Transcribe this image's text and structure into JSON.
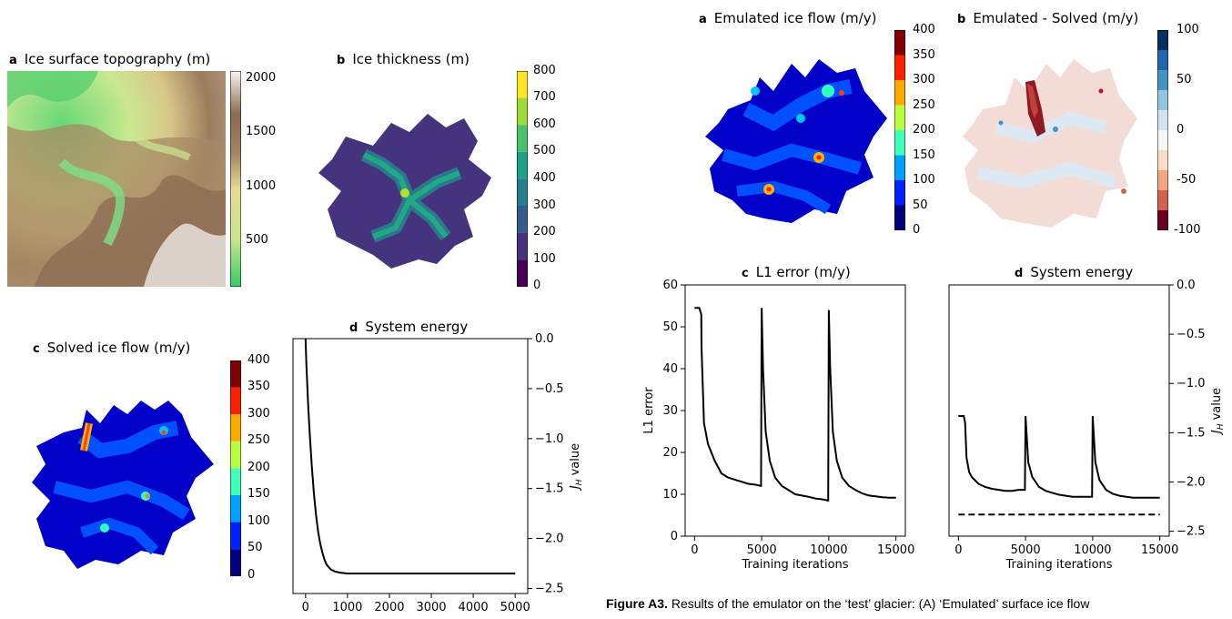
{
  "left_figure": {
    "a": {
      "letter": "a",
      "title": "Ice surface topography (m)",
      "colorbar_ticks": [
        "2000",
        "1500",
        "1000",
        "500"
      ]
    },
    "b": {
      "letter": "b",
      "title": "Ice thickness (m)",
      "colorbar_ticks": [
        "800",
        "700",
        "600",
        "500",
        "400",
        "300",
        "200",
        "100",
        "0"
      ]
    },
    "c": {
      "letter": "c",
      "title": "Solved ice flow  (m/y)",
      "colorbar_ticks": [
        "400",
        "350",
        "300",
        "250",
        "200",
        "150",
        "100",
        "50",
        "0"
      ]
    },
    "d": {
      "letter": "d",
      "title": "System energy"
    }
  },
  "right_figure": {
    "a": {
      "letter": "a",
      "title": "Emulated ice flow (m/y)",
      "colorbar_ticks": [
        "400",
        "350",
        "300",
        "250",
        "200",
        "150",
        "100",
        "50",
        "0"
      ]
    },
    "b": {
      "letter": "b",
      "title": "Emulated - Solved (m/y)",
      "colorbar_ticks": [
        "100",
        "50",
        "0",
        "-50",
        "-100"
      ]
    },
    "c": {
      "letter": "c",
      "title": "L1 error (m/y)"
    },
    "d": {
      "letter": "d",
      "title": "System energy"
    }
  },
  "caption": {
    "label": "Figure A3.",
    "text": " Results of the emulator on the ‘test’ glacier: (A) ‘Emulated’ surface ice flow"
  },
  "colors": {
    "jet_dark": "#00007f",
    "jet_red": "#7f0000",
    "viridis_dark": "#440154",
    "viridis_yellow": "#fde725",
    "terrain_green": "#33cc66",
    "rdbu_red": "#67001f",
    "rdbu_blue": "#053061"
  },
  "chart_data": [
    {
      "id": "left-d",
      "type": "line",
      "title": "System energy",
      "xlabel": "",
      "ylabel": "J_H value",
      "xlim": [
        -300,
        5300
      ],
      "ylim": [
        -2.55,
        0.0
      ],
      "xticks": [
        0,
        1000,
        2000,
        3000,
        4000,
        5000
      ],
      "yticks": [
        0.0,
        -0.5,
        -1.0,
        -1.5,
        -2.0,
        -2.5
      ],
      "series": [
        {
          "x": [
            0,
            20,
            60,
            100,
            150,
            200,
            250,
            300,
            350,
            400,
            450,
            500,
            600,
            700,
            800,
            900,
            1000,
            1500,
            2000,
            3000,
            4000,
            5000
          ],
          "y": [
            0.0,
            -0.25,
            -0.65,
            -0.95,
            -1.28,
            -1.55,
            -1.76,
            -1.93,
            -2.05,
            -2.14,
            -2.21,
            -2.26,
            -2.31,
            -2.33,
            -2.34,
            -2.345,
            -2.35,
            -2.35,
            -2.35,
            -2.35,
            -2.35,
            -2.35
          ]
        }
      ]
    },
    {
      "id": "right-c",
      "type": "line",
      "title": "L1 error (m/y)",
      "xlabel": "Training iterations",
      "ylabel": "L1 error",
      "xlim": [
        -700,
        15700
      ],
      "ylim": [
        0,
        60
      ],
      "xticks": [
        0,
        5000,
        10000,
        15000
      ],
      "yticks": [
        0,
        10,
        20,
        30,
        40,
        50,
        60
      ],
      "series": [
        {
          "x": [
            0,
            350,
            500,
            520,
            700,
            1000,
            1500,
            2000,
            2500,
            3000,
            3500,
            4000,
            4500,
            4950,
            5000,
            5100,
            5300,
            5600,
            6000,
            6500,
            7000,
            7500,
            8000,
            8500,
            9000,
            9500,
            9950,
            10000,
            10100,
            10300,
            10600,
            11000,
            11500,
            12000,
            12500,
            13000,
            13500,
            14000,
            14500,
            15000
          ],
          "y": [
            54.5,
            54.5,
            53,
            45,
            27,
            22,
            18,
            15,
            14,
            13.5,
            13,
            12.5,
            12.3,
            12,
            54.5,
            40,
            25,
            18,
            14,
            12,
            11,
            10,
            9.7,
            9.4,
            9,
            8.8,
            8.5,
            54,
            40,
            25,
            18,
            14,
            12,
            11,
            10.2,
            9.7,
            9.5,
            9.3,
            9.2,
            9.2
          ]
        }
      ]
    },
    {
      "id": "right-d",
      "type": "line",
      "title": "System energy",
      "xlabel": "Training iterations",
      "ylabel": "J_H value",
      "xlim": [
        -700,
        15700
      ],
      "ylim": [
        -2.55,
        0.0
      ],
      "xticks": [
        0,
        5000,
        10000,
        15000
      ],
      "yticks": [
        0.0,
        -0.5,
        -1.0,
        -1.5,
        -2.0,
        -2.5
      ],
      "series": [
        {
          "x": [
            0,
            400,
            500,
            600,
            800,
            1000,
            1500,
            2000,
            2500,
            3000,
            3500,
            4000,
            4500,
            4950,
            5000,
            5200,
            5500,
            6000,
            6500,
            7000,
            7500,
            8000,
            8500,
            9000,
            9500,
            9950,
            10000,
            10200,
            10500,
            11000,
            11500,
            12000,
            12500,
            13000,
            13500,
            14000,
            14500,
            15000
          ],
          "y": [
            -1.33,
            -1.33,
            -1.4,
            -1.75,
            -1.9,
            -1.95,
            -2.02,
            -2.05,
            -2.07,
            -2.08,
            -2.09,
            -2.09,
            -2.08,
            -2.08,
            -1.33,
            -1.8,
            -1.95,
            -2.05,
            -2.09,
            -2.11,
            -2.13,
            -2.14,
            -2.15,
            -2.15,
            -2.15,
            -2.15,
            -1.33,
            -1.8,
            -1.98,
            -2.08,
            -2.12,
            -2.14,
            -2.15,
            -2.16,
            -2.16,
            -2.16,
            -2.16,
            -2.16
          ]
        },
        {
          "x": [
            0,
            15000
          ],
          "y": [
            -2.33,
            -2.33
          ],
          "dashed": true
        }
      ]
    }
  ]
}
